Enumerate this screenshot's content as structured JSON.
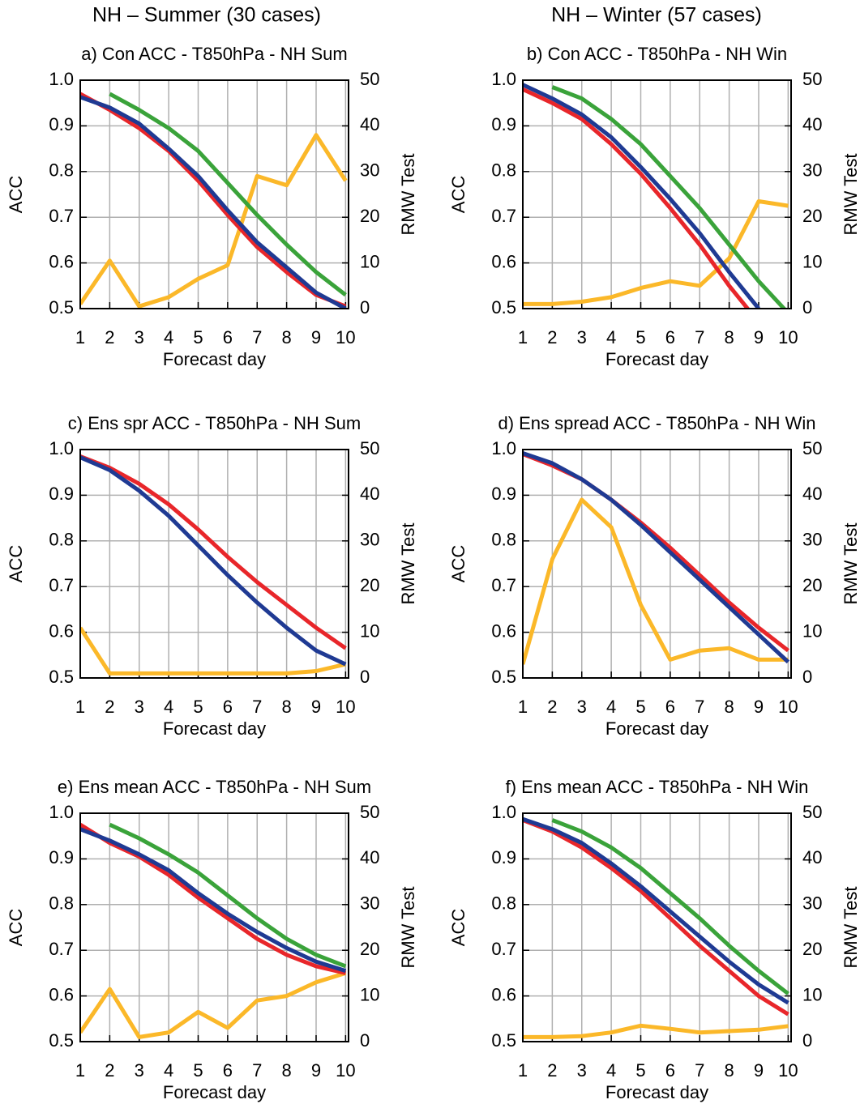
{
  "headers": [
    "NH – Summer (30 cases)",
    "NH – Winter (57 cases)"
  ],
  "chart_data": [
    {
      "type": "line",
      "title": "a) Con ACC - T850hPa - NH Sum",
      "xlabel": "Forecast day",
      "ylabel": "ACC",
      "y2label": "RMW Test",
      "x": [
        1,
        2,
        3,
        4,
        5,
        6,
        7,
        8,
        9,
        10
      ],
      "xlim": [
        1,
        10.1
      ],
      "xticks": [
        1,
        2,
        3,
        4,
        5,
        6,
        7,
        8,
        9,
        10
      ],
      "ylim": [
        0.5,
        1
      ],
      "yticks": [
        0.5,
        0.6,
        0.7,
        0.8,
        0.9,
        {
          "value": 1,
          "label": "1.0"
        }
      ],
      "y2lim": [
        0,
        50
      ],
      "y2ticks": [
        0,
        10,
        20,
        30,
        40,
        50
      ],
      "grid": true,
      "series": [
        {
          "color": "#fbb829",
          "axis": "y2",
          "values": [
            1,
            10.5,
            0.5,
            2.5,
            6.5,
            9.5,
            29,
            27,
            38,
            28
          ]
        },
        {
          "color": "#e8262a",
          "values": [
            0.97,
            0.935,
            0.895,
            0.845,
            0.78,
            0.705,
            0.635,
            0.58,
            0.53,
            0.505
          ]
        },
        {
          "color": "#1f3a93",
          "values": [
            0.963,
            0.94,
            0.905,
            0.85,
            0.79,
            0.715,
            0.645,
            0.59,
            0.535,
            0.5
          ]
        },
        {
          "color": "#3aa33a",
          "values": [
            null,
            0.97,
            0.935,
            0.895,
            0.845,
            0.775,
            0.705,
            0.64,
            0.58,
            0.53
          ]
        }
      ]
    },
    {
      "type": "line",
      "title": "b) Con ACC - T850hPa - NH Win",
      "xlabel": "Forecast day",
      "ylabel": "ACC",
      "y2label": "RMW Test",
      "x": [
        1,
        2,
        3,
        4,
        5,
        6,
        7,
        8,
        9,
        10
      ],
      "xlim": [
        1,
        10.1
      ],
      "xticks": [
        1,
        2,
        3,
        4,
        5,
        6,
        7,
        8,
        9,
        10
      ],
      "ylim": [
        0.5,
        1
      ],
      "yticks": [
        0.5,
        0.6,
        0.7,
        0.8,
        0.9,
        {
          "value": 1,
          "label": "1.0"
        }
      ],
      "y2lim": [
        0,
        50
      ],
      "y2ticks": [
        0,
        10,
        20,
        30,
        40,
        50
      ],
      "grid": true,
      "series": [
        {
          "color": "#fbb829",
          "axis": "y2",
          "values": [
            1,
            1,
            1.5,
            2.5,
            4.5,
            6,
            5,
            11,
            23.5,
            22.5
          ]
        },
        {
          "color": "#e8262a",
          "values": [
            0.98,
            0.95,
            0.915,
            0.86,
            0.795,
            0.72,
            0.64,
            0.55,
            0.47,
            null
          ]
        },
        {
          "color": "#1f3a93",
          "values": [
            0.99,
            0.96,
            0.925,
            0.875,
            0.81,
            0.74,
            0.665,
            0.58,
            0.5,
            null
          ]
        },
        {
          "color": "#3aa33a",
          "values": [
            null,
            0.985,
            0.96,
            0.915,
            0.86,
            0.79,
            0.72,
            0.64,
            0.56,
            0.49
          ]
        }
      ]
    },
    {
      "type": "line",
      "title": "c) Ens spr ACC - T850hPa - NH Sum",
      "xlabel": "Forecast day",
      "ylabel": "ACC",
      "y2label": "RMW Test",
      "x": [
        1,
        2,
        3,
        4,
        5,
        6,
        7,
        8,
        9,
        10
      ],
      "xlim": [
        1,
        10.1
      ],
      "xticks": [
        1,
        2,
        3,
        4,
        5,
        6,
        7,
        8,
        9,
        10
      ],
      "ylim": [
        0.5,
        1
      ],
      "yticks": [
        0.5,
        0.6,
        0.7,
        0.8,
        0.9,
        {
          "value": 1,
          "label": "1.0"
        }
      ],
      "y2lim": [
        0,
        50
      ],
      "y2ticks": [
        0,
        10,
        20,
        30,
        40,
        50
      ],
      "grid": true,
      "series": [
        {
          "color": "#fbb829",
          "axis": "y2",
          "values": [
            11,
            1,
            1,
            1,
            1,
            1,
            1,
            1,
            1.5,
            3
          ]
        },
        {
          "color": "#e8262a",
          "values": [
            0.985,
            0.96,
            0.925,
            0.88,
            0.825,
            0.765,
            0.71,
            0.66,
            0.61,
            0.565
          ]
        },
        {
          "color": "#1f3a93",
          "values": [
            0.983,
            0.955,
            0.91,
            0.855,
            0.79,
            0.725,
            0.665,
            0.61,
            0.56,
            0.53
          ]
        }
      ]
    },
    {
      "type": "line",
      "title": "d) Ens spread ACC - T850hPa - NH Win",
      "xlabel": "Forecast day",
      "ylabel": "ACC",
      "y2label": "RMW Test",
      "x": [
        1,
        2,
        3,
        4,
        5,
        6,
        7,
        8,
        9,
        10
      ],
      "xlim": [
        1,
        10.1
      ],
      "xticks": [
        1,
        2,
        3,
        4,
        5,
        6,
        7,
        8,
        9,
        10
      ],
      "ylim": [
        0.5,
        1
      ],
      "yticks": [
        0.5,
        0.6,
        0.7,
        0.8,
        0.9,
        {
          "value": 1,
          "label": "1.0"
        }
      ],
      "y2lim": [
        0,
        50
      ],
      "y2ticks": [
        0,
        10,
        20,
        30,
        40,
        50
      ],
      "grid": true,
      "series": [
        {
          "color": "#fbb829",
          "axis": "y2",
          "values": [
            3,
            26,
            39,
            33,
            16,
            4,
            6,
            6.5,
            4,
            4
          ]
        },
        {
          "color": "#e8262a",
          "values": [
            0.99,
            0.965,
            0.935,
            0.89,
            0.84,
            0.785,
            0.725,
            0.665,
            0.61,
            0.56
          ]
        },
        {
          "color": "#1f3a93",
          "values": [
            0.992,
            0.97,
            0.935,
            0.89,
            0.835,
            0.775,
            0.715,
            0.655,
            0.595,
            0.535
          ]
        }
      ]
    },
    {
      "type": "line",
      "title": "e) Ens mean ACC - T850hPa - NH Sum",
      "xlabel": "Forecast day",
      "ylabel": "ACC",
      "y2label": "RMW Test",
      "x": [
        1,
        2,
        3,
        4,
        5,
        6,
        7,
        8,
        9,
        10
      ],
      "xlim": [
        1,
        10.1
      ],
      "xticks": [
        1,
        2,
        3,
        4,
        5,
        6,
        7,
        8,
        9,
        10
      ],
      "ylim": [
        0.5,
        1
      ],
      "yticks": [
        0.5,
        0.6,
        0.7,
        0.8,
        0.9,
        {
          "value": 1,
          "label": "1.0"
        }
      ],
      "y2lim": [
        0,
        50
      ],
      "y2ticks": [
        0,
        10,
        20,
        30,
        40,
        50
      ],
      "grid": true,
      "series": [
        {
          "color": "#fbb829",
          "axis": "y2",
          "values": [
            2,
            11.5,
            1,
            2,
            6.5,
            3,
            9,
            10,
            13,
            15
          ]
        },
        {
          "color": "#e8262a",
          "values": [
            0.975,
            0.935,
            0.905,
            0.865,
            0.815,
            0.77,
            0.725,
            0.69,
            0.665,
            0.65
          ]
        },
        {
          "color": "#1f3a93",
          "values": [
            0.965,
            0.94,
            0.91,
            0.875,
            0.825,
            0.78,
            0.74,
            0.705,
            0.675,
            0.655
          ]
        },
        {
          "color": "#3aa33a",
          "values": [
            null,
            0.975,
            0.945,
            0.91,
            0.87,
            0.82,
            0.77,
            0.725,
            0.69,
            0.665
          ]
        }
      ]
    },
    {
      "type": "line",
      "title": "f) Ens mean ACC - T850hPa - NH Win",
      "xlabel": "Forecast day",
      "ylabel": "ACC",
      "y2label": "RMW Test",
      "x": [
        1,
        2,
        3,
        4,
        5,
        6,
        7,
        8,
        9,
        10
      ],
      "xlim": [
        1,
        10.1
      ],
      "xticks": [
        1,
        2,
        3,
        4,
        5,
        6,
        7,
        8,
        9,
        10
      ],
      "ylim": [
        0.5,
        1
      ],
      "yticks": [
        0.5,
        0.6,
        0.7,
        0.8,
        0.9,
        {
          "value": 1,
          "label": "1.0"
        }
      ],
      "y2lim": [
        0,
        50
      ],
      "y2ticks": [
        0,
        10,
        20,
        30,
        40,
        50
      ],
      "grid": true,
      "series": [
        {
          "color": "#fbb829",
          "axis": "y2",
          "values": [
            1,
            1,
            1.2,
            2,
            3.5,
            2.8,
            2,
            2.3,
            2.6,
            3.4
          ]
        },
        {
          "color": "#e8262a",
          "values": [
            0.985,
            0.96,
            0.925,
            0.88,
            0.83,
            0.77,
            0.71,
            0.655,
            0.6,
            0.56
          ]
        },
        {
          "color": "#1f3a93",
          "values": [
            0.987,
            0.965,
            0.935,
            0.89,
            0.84,
            0.785,
            0.73,
            0.675,
            0.625,
            0.585
          ]
        },
        {
          "color": "#3aa33a",
          "values": [
            null,
            0.985,
            0.96,
            0.925,
            0.88,
            0.825,
            0.77,
            0.71,
            0.655,
            0.605
          ]
        }
      ]
    }
  ]
}
